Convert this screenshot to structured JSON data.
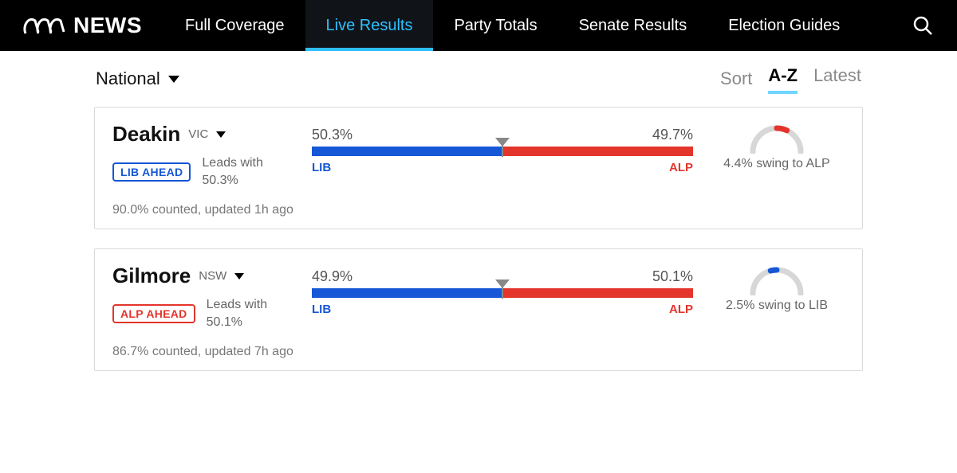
{
  "brand": {
    "text": "NEWS"
  },
  "nav": [
    {
      "label": "Full Coverage",
      "active": false
    },
    {
      "label": "Live Results",
      "active": true
    },
    {
      "label": "Party Totals",
      "active": false
    },
    {
      "label": "Senate Results",
      "active": false
    },
    {
      "label": "Election Guides",
      "active": false
    }
  ],
  "filter": {
    "scope": "National"
  },
  "sort": {
    "label": "Sort",
    "options": [
      "A-Z",
      "Latest"
    ],
    "active_index": 0
  },
  "colors": {
    "lib": "#1557d6",
    "alp": "#e3352b",
    "grey_track": "#d7d7d7",
    "accent": "#2fc0ff"
  },
  "seats": [
    {
      "name": "Deakin",
      "state": "VIC",
      "badge_text": "LIB AHEAD",
      "badge_color": "#1557d6",
      "leads_label": "Leads with",
      "leads_pct": "50.3%",
      "left": {
        "party": "LIB",
        "pct_label": "50.3%",
        "pct": 50.3,
        "color": "#1557d6"
      },
      "right": {
        "party": "ALP",
        "pct_label": "49.7%",
        "pct": 49.7,
        "color": "#e3352b"
      },
      "swing": {
        "text": "4.4% swing to ALP",
        "to_color": "#e3352b",
        "arc_deg": 25,
        "direction": "right"
      },
      "footer": "90.0% counted, updated 1h ago"
    },
    {
      "name": "Gilmore",
      "state": "NSW",
      "badge_text": "ALP AHEAD",
      "badge_color": "#e3352b",
      "leads_label": "Leads with",
      "leads_pct": "50.1%",
      "left": {
        "party": "LIB",
        "pct_label": "49.9%",
        "pct": 49.9,
        "color": "#1557d6"
      },
      "right": {
        "party": "ALP",
        "pct_label": "50.1%",
        "pct": 50.1,
        "color": "#e3352b"
      },
      "swing": {
        "text": "2.5% swing to LIB",
        "to_color": "#1557d6",
        "arc_deg": 15,
        "direction": "left"
      },
      "footer": "86.7% counted, updated 7h ago"
    }
  ]
}
